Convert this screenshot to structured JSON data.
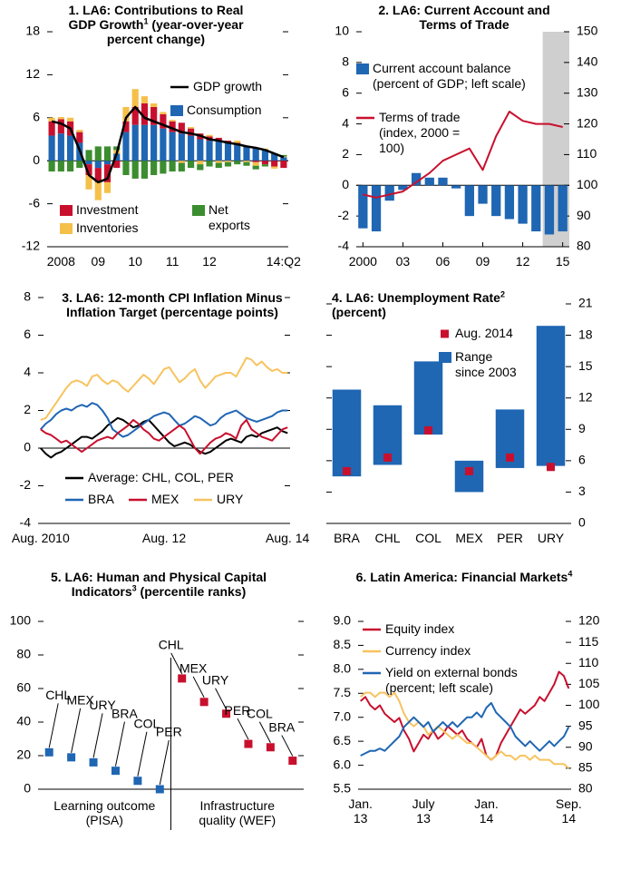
{
  "chart_data": [
    {
      "type": "combo",
      "title": "1. LA6: Contributions to Real GDP Growth",
      "title_note": "1",
      "subtitle": "(year-over-year percent change)",
      "categories": [
        null,
        "2008",
        null,
        null,
        null,
        "09",
        null,
        null,
        null,
        "10",
        null,
        null,
        null,
        "11",
        null,
        null,
        null,
        "12",
        null,
        null,
        null,
        null,
        null,
        null,
        null,
        "14:Q2"
      ],
      "series": [
        {
          "name": "Consumption",
          "kind": "bar",
          "color": "#1f66b3",
          "values": [
            3.5,
            3.8,
            3.5,
            2.5,
            -0.5,
            -1,
            -0.5,
            1,
            4,
            5,
            5,
            5,
            4.5,
            4,
            3.8,
            3.5,
            3,
            2.8,
            2.7,
            2.5,
            2.3,
            2,
            1.8,
            1.5,
            1,
            0.5
          ]
        },
        {
          "name": "Investment",
          "kind": "bar",
          "color": "#c8102e",
          "values": [
            2,
            2,
            2,
            1.5,
            -1.5,
            -2,
            -2.5,
            -1,
            1.5,
            2.5,
            3,
            2.5,
            2,
            1.5,
            1.5,
            1,
            0.8,
            0.6,
            0.5,
            0.3,
            0.2,
            0,
            -0.2,
            -0.5,
            -0.8,
            -1
          ]
        },
        {
          "name": "Inventories",
          "kind": "bar",
          "color": "#f5c04a",
          "values": [
            0.5,
            0.3,
            0.5,
            0.3,
            -2,
            -2.5,
            -1.5,
            0.5,
            2,
            2.5,
            1,
            0.5,
            0.3,
            0.2,
            -0.3,
            0.2,
            -0.5,
            0.2,
            -0.3,
            -0.2,
            0.3,
            -0.2,
            -0.5,
            0.2,
            -0.3,
            0.1
          ]
        },
        {
          "name": "Net exports",
          "kind": "bar",
          "color": "#3c8d2f",
          "values": [
            -1.5,
            -1.5,
            -1.5,
            -1,
            1.5,
            2,
            2,
            0.5,
            -2,
            -2.5,
            -2.5,
            -2,
            -1.8,
            -1.5,
            -1.2,
            -1,
            -0.8,
            -0.8,
            -0.7,
            -0.6,
            -0.5,
            -0.5,
            -0.5,
            -0.3,
            0,
            0.2
          ]
        },
        {
          "name": "GDP growth",
          "kind": "line",
          "color": "#000000",
          "values": [
            5.5,
            5.2,
            4.5,
            1.5,
            -2,
            -3,
            -2.5,
            1,
            6,
            7.5,
            6,
            5.5,
            5,
            4.5,
            4,
            3.8,
            3.5,
            3,
            2.8,
            2.5,
            2.3,
            2,
            1.8,
            1.5,
            1,
            0.5
          ]
        }
      ],
      "ylim": [
        -12,
        18
      ],
      "yticks": [
        -12,
        -6,
        0,
        6,
        12,
        18
      ],
      "ytick_side": "left",
      "zero_line": true
    },
    {
      "type": "combo",
      "title": "2. LA6: Current Account and Terms of Trade",
      "x": [
        2000,
        2001,
        2002,
        2003,
        2004,
        2005,
        2006,
        2007,
        2008,
        2009,
        2010,
        2011,
        2012,
        2013,
        2014,
        2015
      ],
      "xlim": [
        1999.5,
        2015.5
      ],
      "xticks": [
        2000,
        {
          "value": 2003,
          "label": "03"
        },
        {
          "value": 2006,
          "label": "06"
        },
        {
          "value": 2009,
          "label": "09"
        },
        {
          "value": 2012,
          "label": "12"
        },
        {
          "value": 2015,
          "label": "15"
        }
      ],
      "series": [
        {
          "name": "Current account balance (percent of GDP; left scale)",
          "kind": "bar",
          "color": "#1f66b3",
          "values": [
            -2.8,
            -3,
            -1,
            -0.3,
            0.8,
            0.5,
            0.5,
            -0.2,
            -2,
            -1.2,
            -2,
            -2.2,
            -2.5,
            -3,
            -3.2,
            -3
          ]
        },
        {
          "name": "Terms of trade (index, 2000 = 100)",
          "kind": "line",
          "axis": "y2",
          "color": "#c8102e",
          "values": [
            97,
            96,
            97,
            98,
            101,
            104,
            108,
            110,
            112,
            105,
            116,
            124,
            121,
            120,
            120,
            119
          ]
        }
      ],
      "ylim": [
        -4,
        10
      ],
      "yticks": [
        -4,
        -2,
        0,
        2,
        4,
        6,
        8,
        10
      ],
      "ytick_side": "left",
      "y2lim": [
        80,
        150
      ],
      "y2ticks": [
        80,
        90,
        100,
        110,
        120,
        130,
        140,
        150
      ],
      "shaded": [
        2014,
        2015
      ],
      "zero_line": true
    },
    {
      "type": "line",
      "title": "3. LA6: 12-month CPI Inflation Minus Inflation Target",
      "subtitle": "(percentage points)",
      "categories": [
        "Aug. 2010",
        null,
        null,
        null,
        null,
        null,
        null,
        null,
        null,
        null,
        null,
        null,
        null,
        null,
        null,
        null,
        null,
        null,
        null,
        null,
        null,
        null,
        null,
        null,
        "Aug. 12",
        null,
        null,
        null,
        null,
        null,
        null,
        null,
        null,
        null,
        null,
        null,
        null,
        null,
        null,
        null,
        null,
        null,
        null,
        null,
        null,
        null,
        null,
        null,
        "Aug. 14"
      ],
      "series": [
        {
          "name": "Average: CHL, COL, PER",
          "kind": "line",
          "color": "#000000",
          "values": [
            0,
            -0.3,
            -0.5,
            -0.3,
            -0.2,
            0,
            0.2,
            0.4,
            0.6,
            0.6,
            0.5,
            0.7,
            0.9,
            1.2,
            1.4,
            1.6,
            1.5,
            1.3,
            1.1,
            1.2,
            1.4,
            1.5,
            1.2,
            0.9,
            0.6,
            0.3,
            0.1,
            0.2,
            0.3,
            0.2,
            0,
            -0.2,
            -0.3,
            -0.2,
            0,
            0.2,
            0.4,
            0.5,
            0.4,
            0.3,
            0.6,
            0.7,
            0.6,
            0.8,
            0.9,
            1,
            1.1,
            0.9,
            0.8
          ]
        },
        {
          "name": "BRA",
          "kind": "line",
          "color": "#1f66b3",
          "values": [
            1,
            1.3,
            1.5,
            1.8,
            2,
            2.1,
            2,
            2.2,
            2.3,
            2.2,
            2.4,
            2.3,
            2,
            1.6,
            1,
            0.8,
            0.6,
            0.7,
            0.9,
            1.1,
            1.3,
            1.5,
            1.7,
            1.8,
            1.9,
            1.8,
            1.5,
            1.2,
            1.3,
            1.5,
            1.7,
            1.6,
            1.4,
            1.2,
            1.3,
            1.6,
            1.8,
            1.9,
            2,
            1.8,
            1.6,
            1.5,
            1.4,
            1.5,
            1.6,
            1.7,
            1.9,
            2,
            2
          ]
        },
        {
          "name": "MEX",
          "kind": "line",
          "color": "#c8102e",
          "values": [
            1,
            0.8,
            0.7,
            0.5,
            0.3,
            0.4,
            0.2,
            0,
            -0.2,
            0,
            0.2,
            0.4,
            0.5,
            0.6,
            0.5,
            0.8,
            1,
            1.2,
            1.5,
            1.3,
            1,
            0.8,
            0.5,
            0.4,
            0.6,
            0.8,
            1,
            1.2,
            1,
            0.5,
            0,
            -0.3,
            0,
            0.3,
            0.5,
            0.6,
            0.8,
            0.7,
            0.5,
            1.2,
            1.5,
            1,
            0.8,
            0.6,
            0.5,
            0.4,
            0.7,
            1,
            1.1
          ]
        },
        {
          "name": "URY",
          "kind": "line",
          "color": "#f7c35f",
          "values": [
            1.5,
            1.6,
            2,
            2.4,
            2.8,
            3.2,
            3.5,
            3.6,
            3.5,
            3.3,
            3.8,
            3.9,
            3.6,
            3.4,
            3.6,
            3.5,
            3.2,
            3,
            3.3,
            3.6,
            3.9,
            3.7,
            3.4,
            3.8,
            4.2,
            4.3,
            3.9,
            3.5,
            3.7,
            4,
            4.2,
            3.6,
            3.2,
            3.5,
            3.8,
            3.9,
            4,
            4,
            3.8,
            4.3,
            4.8,
            4.7,
            4.4,
            4.6,
            4.3,
            4.1,
            4.2,
            4,
            4
          ]
        }
      ],
      "ylim": [
        -4,
        8
      ],
      "yticks": [
        -4,
        -2,
        0,
        2,
        4,
        6,
        8
      ],
      "ytick_side": "left",
      "zero_line": true
    },
    {
      "type": "range",
      "title": "4. LA6: Unemployment Rate",
      "title_note": "2",
      "subtitle": "(percent)",
      "categories": [
        "BRA",
        "CHL",
        "COL",
        "MEX",
        "PER",
        "URY"
      ],
      "series": [
        {
          "name": "Range since 2003",
          "kind": "range",
          "color": "#1f66b3",
          "low": [
            4.5,
            5.6,
            8.5,
            3,
            5.3,
            5.5
          ],
          "high": [
            12.8,
            11.3,
            15.5,
            6,
            10.9,
            18.9
          ]
        },
        {
          "name": "Aug. 2014",
          "kind": "point",
          "color": "#c8102e",
          "values": [
            5,
            6.3,
            8.9,
            5,
            6.3,
            5.4
          ]
        }
      ],
      "ylim": [
        0,
        21
      ],
      "yticks": [
        0,
        3,
        6,
        9,
        12,
        15,
        18,
        21
      ],
      "ytick_side": "right"
    },
    {
      "type": "dot",
      "title": "5. LA6: Human and Physical Capital Indicators",
      "title_note": "3",
      "subtitle": "(percentile ranks)",
      "groups": [
        {
          "label": "Learning outcome (PISA)",
          "color": "#1f66b3",
          "points": [
            {
              "label": "CHL",
              "value": 22
            },
            {
              "label": "MEX",
              "value": 19
            },
            {
              "label": "URY",
              "value": 16
            },
            {
              "label": "BRA",
              "value": 11
            },
            {
              "label": "COL",
              "value": 5
            },
            {
              "label": "PER",
              "value": 0
            }
          ]
        },
        {
          "label": "Infrastructure quality (WEF)",
          "color": "#c8102e",
          "points": [
            {
              "label": "CHL",
              "value": 66
            },
            {
              "label": "MEX",
              "value": 52
            },
            {
              "label": "URY",
              "value": 45
            },
            {
              "label": "PER",
              "value": 27
            },
            {
              "label": "COL",
              "value": 25
            },
            {
              "label": "BRA",
              "value": 17
            }
          ]
        }
      ],
      "ylim": [
        0,
        100
      ],
      "yticks": [
        0,
        20,
        40,
        60,
        80,
        100
      ],
      "ytick_side": "left"
    },
    {
      "type": "line",
      "title": "6. Latin America: Financial Markets",
      "title_note": "4",
      "categories": [
        "Jan. 13",
        null,
        null,
        null,
        null,
        null,
        null,
        null,
        null,
        null,
        null,
        null,
        null,
        "July 13",
        null,
        null,
        null,
        null,
        null,
        null,
        null,
        null,
        null,
        null,
        null,
        null,
        "Jan. 14",
        null,
        null,
        null,
        null,
        null,
        null,
        null,
        null,
        null,
        null,
        null,
        null,
        null,
        null,
        null,
        null,
        "Sep. 14"
      ],
      "series": [
        {
          "name": "Equity index",
          "kind": "line",
          "axis": "y2",
          "color": "#c8102e",
          "values": [
            101,
            102,
            100,
            99,
            100,
            98,
            97,
            96,
            97,
            94,
            92,
            89,
            91,
            93,
            92,
            94,
            92,
            93,
            95,
            94,
            93,
            94,
            92,
            91,
            90,
            92,
            88,
            87,
            88,
            91,
            93,
            95,
            97,
            99,
            98,
            99,
            100,
            102,
            101,
            103,
            105,
            108,
            107,
            104
          ]
        },
        {
          "name": "Currency index",
          "kind": "line",
          "axis": "y2",
          "color": "#f7c35f",
          "values": [
            102,
            103,
            103,
            102,
            103,
            103,
            102,
            103,
            101,
            98,
            96,
            95,
            96,
            95,
            93,
            94,
            95,
            94,
            93,
            92,
            93,
            92,
            91,
            91,
            90,
            89,
            88,
            87,
            88,
            89,
            88,
            88,
            87,
            88,
            88,
            87,
            88,
            87,
            87,
            87,
            86,
            86,
            86,
            85
          ]
        },
        {
          "name": "Yield on external bonds (percent; left scale)",
          "kind": "line",
          "color": "#1f66b3",
          "values": [
            6.2,
            6.25,
            6.3,
            6.3,
            6.35,
            6.3,
            6.4,
            6.5,
            6.6,
            6.8,
            6.9,
            7.0,
            6.9,
            6.8,
            6.9,
            6.7,
            6.8,
            6.9,
            6.8,
            6.9,
            6.8,
            6.9,
            7.0,
            7.0,
            7.1,
            7.0,
            7.2,
            7.3,
            7.1,
            7.0,
            6.9,
            6.8,
            6.6,
            6.5,
            6.4,
            6.5,
            6.4,
            6.3,
            6.4,
            6.5,
            6.4,
            6.5,
            6.6,
            6.8
          ]
        }
      ],
      "ylim": [
        5.5,
        9
      ],
      "yticks": [
        5.5,
        {
          "value": 6,
          "label": "6.0"
        },
        6.5,
        {
          "value": 7,
          "label": "7.0"
        },
        7.5,
        {
          "value": 8,
          "label": "8.0"
        },
        8.5,
        {
          "value": 9,
          "label": "9.0"
        }
      ],
      "ytick_side": "left",
      "y2lim": [
        80,
        120
      ],
      "y2ticks": [
        80,
        85,
        90,
        95,
        100,
        105,
        110,
        115,
        120
      ]
    }
  ]
}
